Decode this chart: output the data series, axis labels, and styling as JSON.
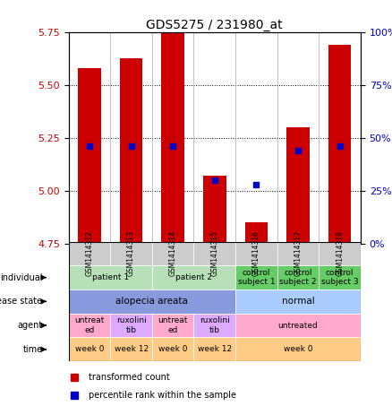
{
  "title": "GDS5275 / 231980_at",
  "samples": [
    "GSM1414312",
    "GSM1414313",
    "GSM1414314",
    "GSM1414315",
    "GSM1414316",
    "GSM1414317",
    "GSM1414318"
  ],
  "bar_values": [
    5.58,
    5.63,
    5.75,
    5.07,
    4.85,
    5.3,
    5.69
  ],
  "percentile_values": [
    46,
    46,
    46,
    30,
    28,
    44,
    46
  ],
  "ylim_left": [
    4.75,
    5.75
  ],
  "yticks_left": [
    4.75,
    5.0,
    5.25,
    5.5,
    5.75
  ],
  "ylim_right": [
    0,
    100
  ],
  "yticks_right": [
    0,
    25,
    50,
    75,
    100
  ],
  "ytick_right_labels": [
    "0%",
    "25%",
    "50%",
    "75%",
    "100%"
  ],
  "bar_color": "#cc0000",
  "dot_color": "#0000cc",
  "bar_bottom": 4.75,
  "individual_data": [
    [
      0,
      2,
      "patient 1",
      "#b8e0b8"
    ],
    [
      2,
      4,
      "patient 2",
      "#b8e0b8"
    ],
    [
      4,
      5,
      "control\nsubject 1",
      "#66cc66"
    ],
    [
      5,
      6,
      "control\nsubject 2",
      "#66cc66"
    ],
    [
      6,
      7,
      "control\nsubject 3",
      "#66cc66"
    ]
  ],
  "disease_data": [
    [
      0,
      4,
      "alopecia areata",
      "#8899dd"
    ],
    [
      4,
      7,
      "normal",
      "#aaccff"
    ]
  ],
  "agent_data": [
    [
      0,
      1,
      "untreat\ned",
      "#ffaacc"
    ],
    [
      1,
      2,
      "ruxolini\ntib",
      "#ddaaff"
    ],
    [
      2,
      3,
      "untreat\ned",
      "#ffaacc"
    ],
    [
      3,
      4,
      "ruxolini\ntib",
      "#ddaaff"
    ],
    [
      4,
      7,
      "untreated",
      "#ffaacc"
    ]
  ],
  "time_data": [
    [
      0,
      1,
      "week 0",
      "#ffcc88"
    ],
    [
      1,
      2,
      "week 12",
      "#ffcc88"
    ],
    [
      2,
      3,
      "week 0",
      "#ffcc88"
    ],
    [
      3,
      4,
      "week 12",
      "#ffcc88"
    ],
    [
      4,
      7,
      "week 0",
      "#ffcc88"
    ]
  ],
  "row_labels": [
    "individual",
    "disease state",
    "agent",
    "time"
  ],
  "sample_box_color": "#cccccc",
  "legend_bar_label": "transformed count",
  "legend_dot_label": "percentile rank within the sample",
  "tick_color_left": "#cc0000",
  "tick_color_right": "#0000cc"
}
